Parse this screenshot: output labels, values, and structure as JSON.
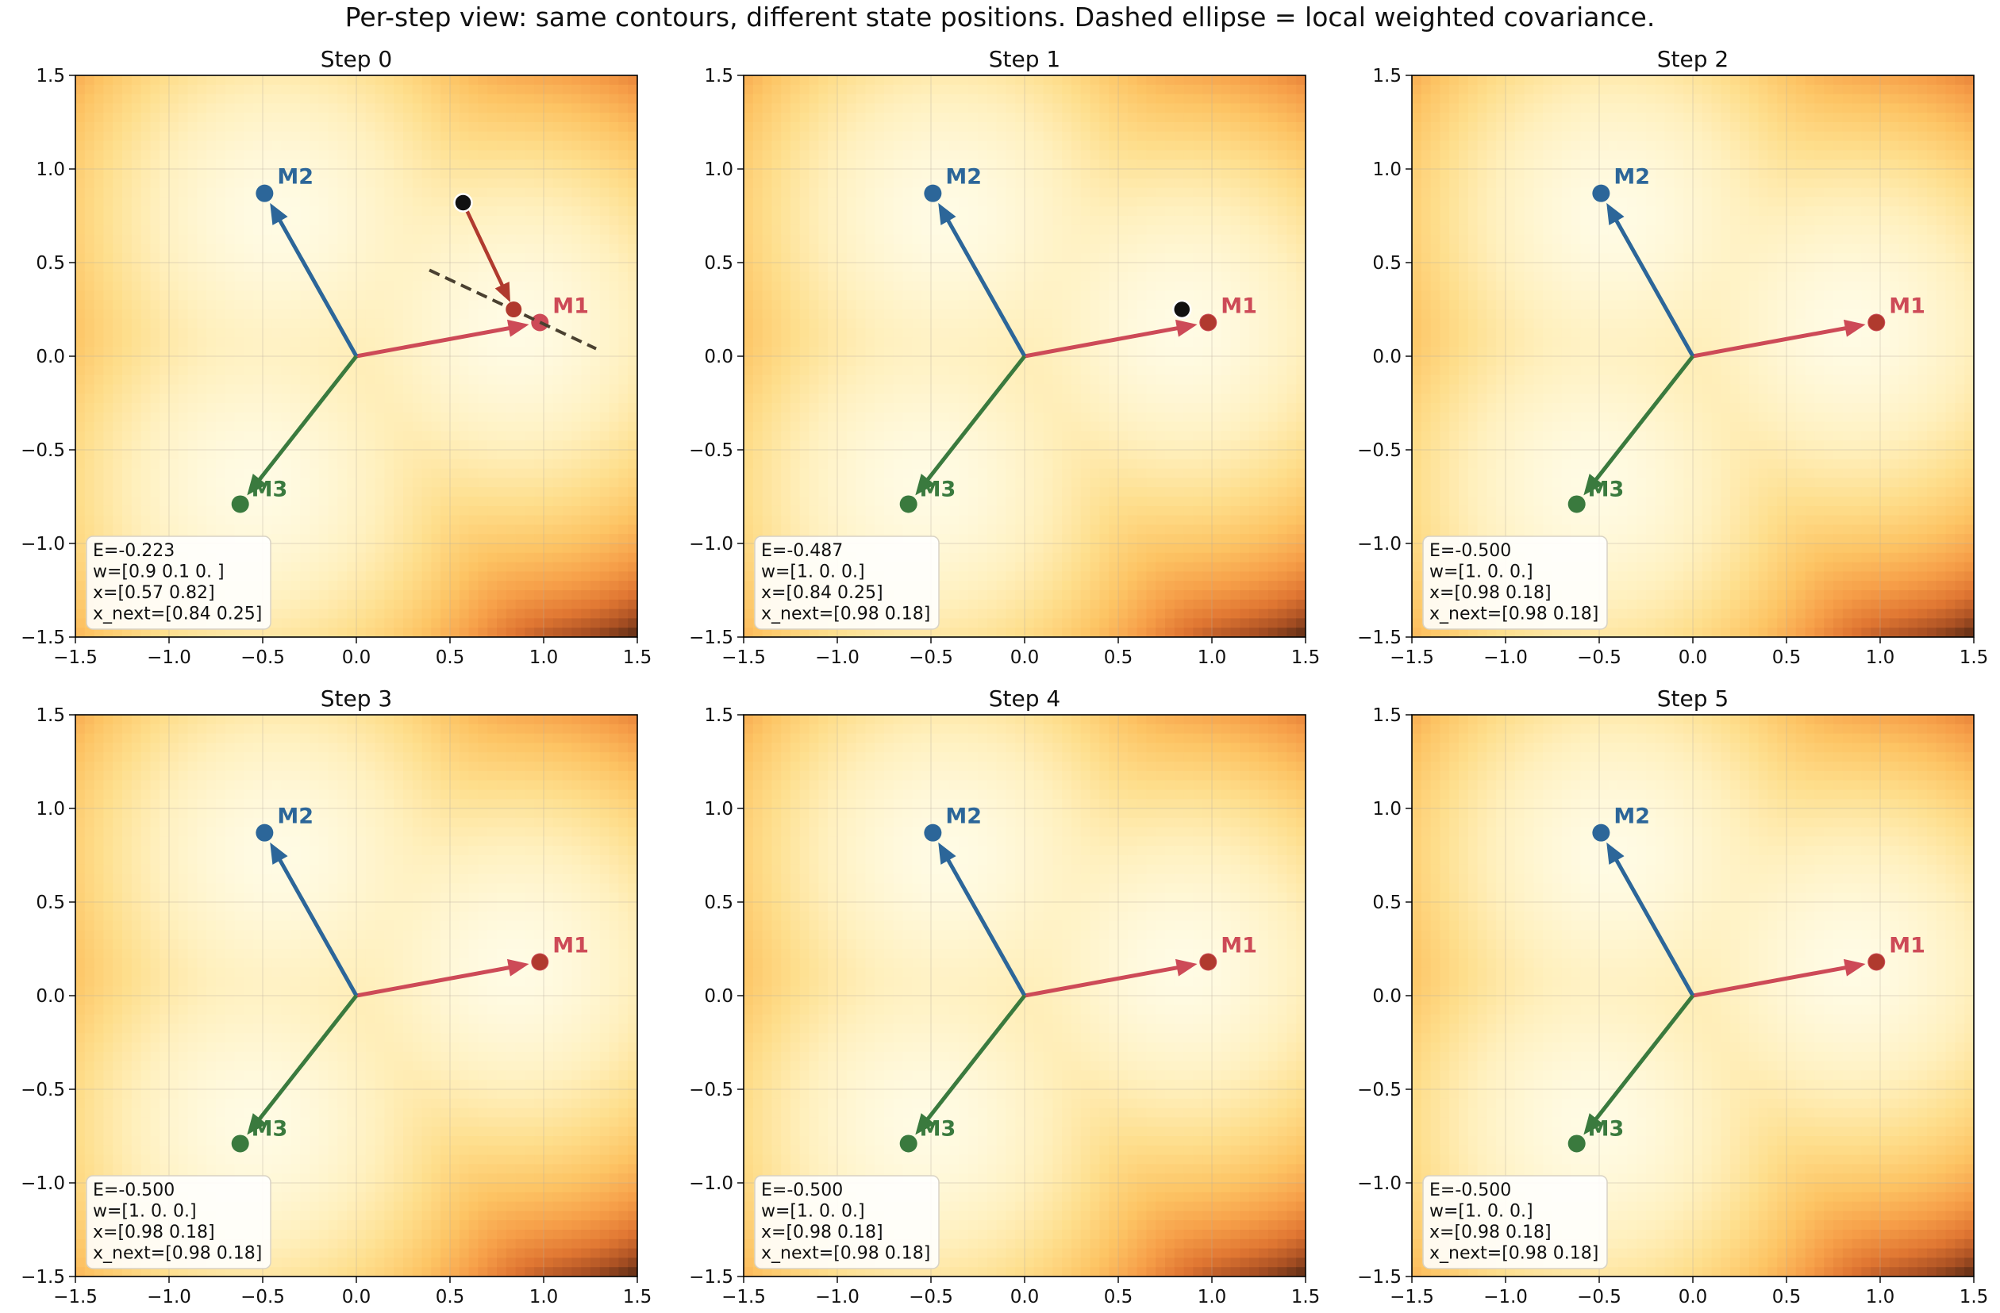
{
  "suptitle": "Per-step view: same contours, different state positions. Dashed ellipse = local weighted covariance.",
  "colors": {
    "m1": "#cd4a57",
    "m2": "#2c6699",
    "m3": "#3a7a3e",
    "step_arrow": "#b03a2e",
    "state": "#111111",
    "dashed": "#4a4030"
  },
  "chart_data": {
    "type": "contour",
    "xlim": [
      -1.5,
      1.5
    ],
    "ylim": [
      -1.5,
      1.5
    ],
    "grid": true,
    "xticks": [
      -1.5,
      -1.0,
      -0.5,
      0.0,
      0.5,
      1.0,
      1.5
    ],
    "yticks": [
      -1.5,
      -1.0,
      -0.5,
      0.0,
      0.5,
      1.0,
      1.5
    ],
    "xtick_labels": [
      "−1.5",
      "−1.0",
      "−0.5",
      "0.0",
      "0.5",
      "1.0",
      "1.5"
    ],
    "ytick_labels": [
      "−1.5",
      "−1.0",
      "−0.5",
      "0.0",
      "0.5",
      "1.0",
      "1.5"
    ],
    "memories": [
      {
        "name": "M1",
        "x": 0.98,
        "y": 0.18
      },
      {
        "name": "M2",
        "x": -0.49,
        "y": 0.87
      },
      {
        "name": "M3",
        "x": -0.62,
        "y": -0.79
      }
    ],
    "panels": [
      {
        "title": "Step 0",
        "state": [
          0.57,
          0.82
        ],
        "next": [
          0.84,
          0.25
        ],
        "dashed_axis": [
          [
            0.39,
            0.46
          ],
          [
            1.28,
            0.04
          ]
        ],
        "info": [
          "E=-0.223",
          "w=[0.9 0.1 0. ]",
          "x=[0.57 0.82]",
          "x_next=[0.84 0.25]"
        ]
      },
      {
        "title": "Step 1",
        "state": [
          0.84,
          0.25
        ],
        "next": [
          0.98,
          0.18
        ],
        "dashed_axis": null,
        "info": [
          "E=-0.487",
          "w=[1. 0. 0.]",
          "x=[0.84 0.25]",
          "x_next=[0.98 0.18]"
        ]
      },
      {
        "title": "Step 2",
        "state": [
          0.98,
          0.18
        ],
        "next": [
          0.98,
          0.18
        ],
        "dashed_axis": null,
        "info": [
          "E=-0.500",
          "w=[1. 0. 0.]",
          "x=[0.98 0.18]",
          "x_next=[0.98 0.18]"
        ]
      },
      {
        "title": "Step 3",
        "state": [
          0.98,
          0.18
        ],
        "next": [
          0.98,
          0.18
        ],
        "dashed_axis": null,
        "info": [
          "E=-0.500",
          "w=[1. 0. 0.]",
          "x=[0.98 0.18]",
          "x_next=[0.98 0.18]"
        ]
      },
      {
        "title": "Step 4",
        "state": [
          0.98,
          0.18
        ],
        "next": [
          0.98,
          0.18
        ],
        "dashed_axis": null,
        "info": [
          "E=-0.500",
          "w=[1. 0. 0.]",
          "x=[0.98 0.18]",
          "x_next=[0.98 0.18]"
        ]
      },
      {
        "title": "Step 5",
        "state": [
          0.98,
          0.18
        ],
        "next": [
          0.98,
          0.18
        ],
        "dashed_axis": null,
        "info": [
          "E=-0.500",
          "w=[1. 0. 0.]",
          "x=[0.98 0.18]",
          "x_next=[0.98 0.18]"
        ]
      }
    ]
  }
}
